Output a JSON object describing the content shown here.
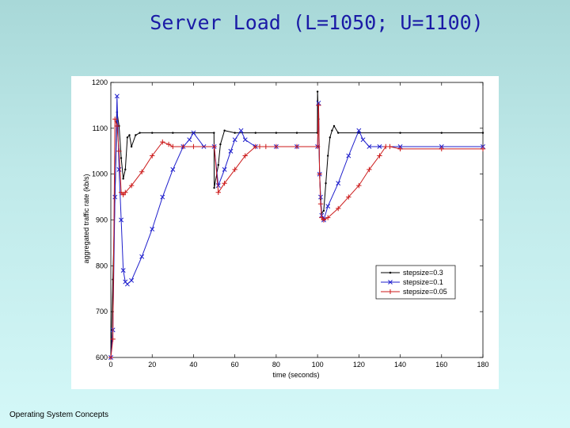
{
  "slide": {
    "title": "Server Load (L=1050; U=1100)",
    "footer": "Operating System Concepts"
  },
  "chart_data": {
    "type": "line",
    "title": "",
    "xlabel": "time (seconds)",
    "ylabel": "aggregated traffic rate (kb/s)",
    "xlim": [
      0,
      180
    ],
    "ylim": [
      600,
      1200
    ],
    "xticks": [
      "0",
      "20",
      "40",
      "60",
      "80",
      "100",
      "120",
      "140",
      "160",
      "180"
    ],
    "yticks": [
      "600",
      "700",
      "800",
      "900",
      "1000",
      "1100",
      "1200"
    ],
    "legend_position": "lower-right",
    "grid": false,
    "series": [
      {
        "name": "stepsize=0.3",
        "color": "#000000",
        "marker": "dot",
        "x": [
          0,
          1,
          2,
          3,
          4,
          5,
          6,
          7,
          8,
          9,
          10,
          12,
          14,
          20,
          30,
          40,
          49.9,
          50,
          52,
          53,
          55,
          60,
          70,
          80,
          90,
          99.9,
          100,
          100.5,
          101,
          101.5,
          102,
          103,
          104,
          105,
          106,
          107,
          108,
          110,
          120,
          140,
          160,
          180
        ],
        "y": [
          600,
          770,
          950,
          1135,
          1105,
          1035,
          990,
          1010,
          1080,
          1085,
          1060,
          1085,
          1090,
          1090,
          1090,
          1090,
          1090,
          970,
          1020,
          1065,
          1095,
          1090,
          1090,
          1090,
          1090,
          1090,
          1180,
          1120,
          1000,
          945,
          915,
          920,
          980,
          1040,
          1080,
          1095,
          1105,
          1090,
          1090,
          1090,
          1090,
          1090
        ]
      },
      {
        "name": "stepsize=0.1",
        "color": "#1f1fcc",
        "marker": "x",
        "x": [
          0,
          1,
          2,
          3,
          4,
          5,
          6,
          7,
          8,
          10,
          15,
          20,
          25,
          30,
          35,
          38,
          40,
          45,
          50,
          52,
          55,
          58,
          60,
          63,
          65,
          70,
          80,
          90,
          100,
          100.5,
          101,
          101.5,
          102,
          103,
          105,
          110,
          115,
          120,
          122,
          125,
          130,
          140,
          160,
          180
        ],
        "y": [
          600,
          660,
          950,
          1170,
          1010,
          900,
          790,
          765,
          760,
          768,
          820,
          880,
          950,
          1010,
          1060,
          1075,
          1090,
          1060,
          1060,
          975,
          1010,
          1050,
          1075,
          1095,
          1075,
          1060,
          1060,
          1060,
          1060,
          1155,
          1000,
          950,
          910,
          900,
          930,
          980,
          1040,
          1095,
          1075,
          1060,
          1060,
          1060,
          1060,
          1060
        ]
      },
      {
        "name": "stepsize=0.05",
        "color": "#cc1a1a",
        "marker": "plus",
        "x": [
          0,
          1,
          2,
          3,
          4,
          5,
          6,
          7,
          10,
          15,
          20,
          25,
          28,
          30,
          35,
          40,
          50,
          52,
          55,
          60,
          65,
          70,
          72,
          75,
          80,
          90,
          100,
          100.5,
          101,
          101.5,
          102,
          103,
          105,
          110,
          115,
          120,
          125,
          130,
          133,
          135,
          140,
          160,
          180
        ],
        "y": [
          600,
          640,
          1120,
          1105,
          1050,
          960,
          955,
          960,
          975,
          1005,
          1040,
          1070,
          1065,
          1060,
          1060,
          1060,
          1060,
          960,
          980,
          1010,
          1040,
          1060,
          1060,
          1060,
          1060,
          1060,
          1060,
          1150,
          1000,
          935,
          905,
          900,
          905,
          925,
          950,
          975,
          1010,
          1040,
          1060,
          1060,
          1055,
          1055,
          1055
        ]
      }
    ]
  }
}
